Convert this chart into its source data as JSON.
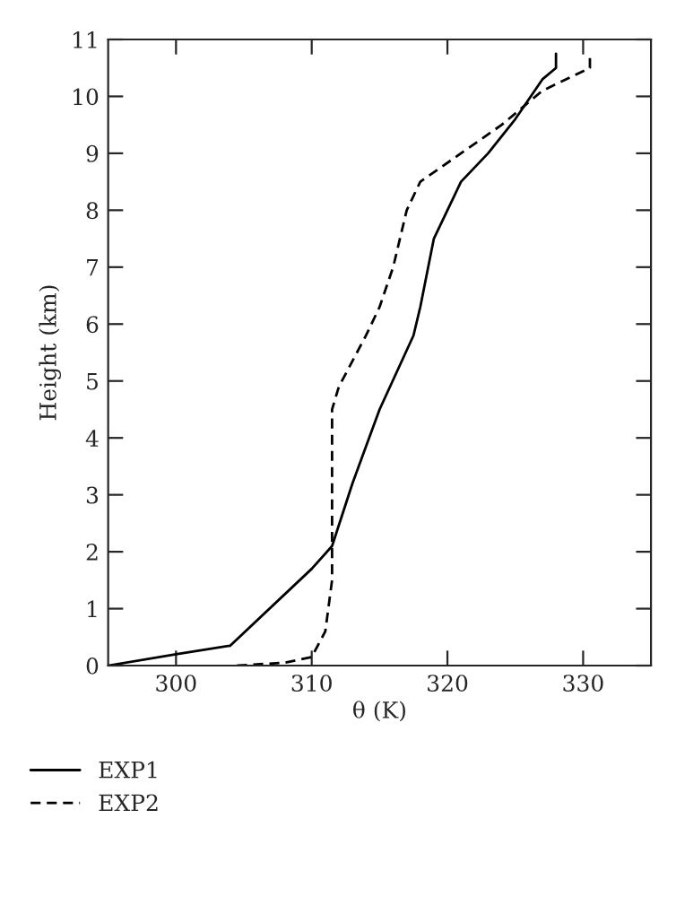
{
  "chart_data": {
    "type": "line",
    "xlabel": "θ (K)",
    "ylabel": "Height (km)",
    "xlim": [
      295,
      335
    ],
    "ylim": [
      0,
      11
    ],
    "xticks": [
      300,
      310,
      320,
      330
    ],
    "yticks": [
      0,
      1,
      2,
      3,
      4,
      5,
      6,
      7,
      8,
      9,
      10,
      11
    ],
    "grid": false,
    "legend": "bottom left",
    "marker": "none",
    "series": [
      {
        "name": "EXP1",
        "color": "#000000",
        "line_style": "solid",
        "x": [
          295,
          300,
          304,
          310,
          311.5,
          313,
          315,
          317.5,
          318,
          319,
          320,
          321,
          323,
          325,
          327,
          328,
          328
        ],
        "values": [
          0,
          0.2,
          0.35,
          1.7,
          2.1,
          3.2,
          4.5,
          5.8,
          6.3,
          7.5,
          8,
          8.5,
          9,
          9.6,
          10.3,
          10.5,
          10.75
        ]
      },
      {
        "name": "EXP2",
        "color": "#000000",
        "line_style": "dashed",
        "x": [
          304.5,
          308,
          310,
          311,
          311.5,
          311.5,
          311.5,
          312,
          314,
          315,
          316,
          317,
          318,
          321,
          324,
          327,
          330.5,
          330.5
        ],
        "values": [
          0,
          0.05,
          0.15,
          0.6,
          1.5,
          3,
          4.5,
          4.9,
          5.8,
          6.3,
          7,
          8,
          8.5,
          9,
          9.5,
          10.1,
          10.5,
          10.75
        ]
      }
    ]
  }
}
